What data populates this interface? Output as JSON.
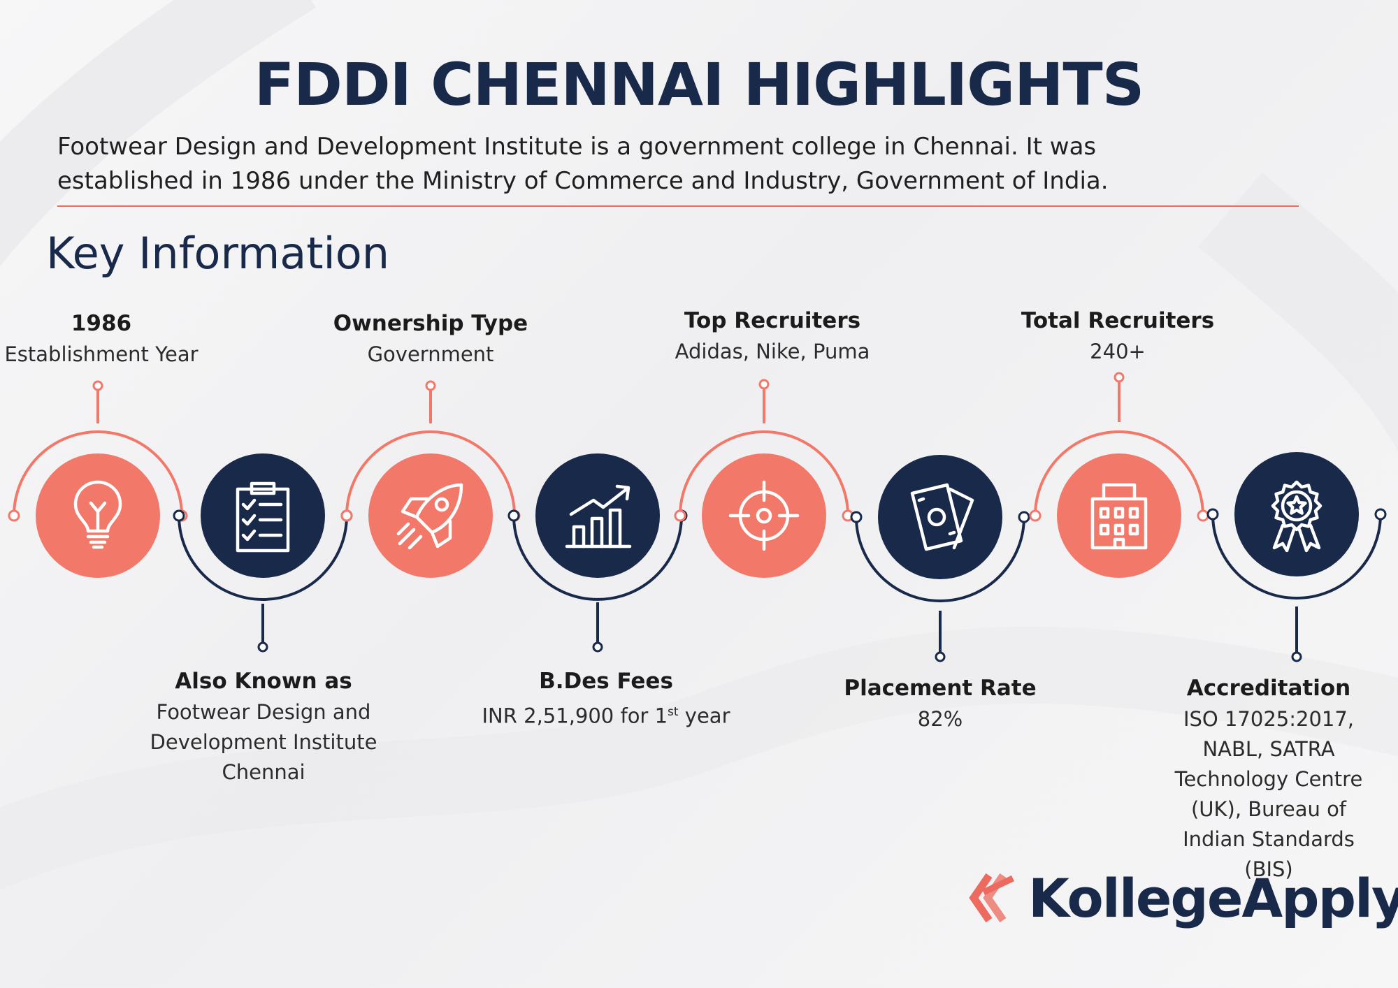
{
  "title": "FDDI CHENNAI HIGHLIGHTS",
  "intro": {
    "line1": "Footwear Design and Development Institute is a government college in Chennai. It was",
    "line2": "established in 1986 under the Ministry of Commerce and Industry, Government of India."
  },
  "subtitle": "Key Information",
  "colors": {
    "coral": "#f2786a",
    "navy": "#18294a",
    "accent_line": "#ec6a5e"
  },
  "items": [
    {
      "heading": "1986",
      "value": "Establishment Year",
      "icon": "lightbulb-icon",
      "color": "coral"
    },
    {
      "heading": "Also Known as",
      "value": "Footwear Design and Development Institute Chennai",
      "icon": "clipboard-checklist-icon",
      "color": "navy"
    },
    {
      "heading": "Ownership Type",
      "value": "Government",
      "icon": "rocket-icon",
      "color": "coral"
    },
    {
      "heading": "B.Des Fees",
      "value_prefix": "INR 2,51,900 for 1",
      "value_sup": "st",
      "value_suffix": " year",
      "icon": "growth-chart-icon",
      "color": "navy"
    },
    {
      "heading": "Top Recruiters",
      "value": "Adidas, Nike, Puma",
      "icon": "target-icon",
      "color": "coral"
    },
    {
      "heading": "Placement Rate",
      "value": "82%",
      "icon": "money-notes-icon",
      "color": "navy"
    },
    {
      "heading": "Total Recruiters",
      "value": "240+",
      "icon": "office-building-icon",
      "color": "coral"
    },
    {
      "heading": "Accreditation",
      "value": "ISO 17025:2017, NABL, SATRA Technology Centre (UK), Bureau of Indian Standards (BIS)",
      "icon": "award-badge-icon",
      "color": "navy"
    }
  ],
  "logo": {
    "text": "KollegeApply"
  }
}
